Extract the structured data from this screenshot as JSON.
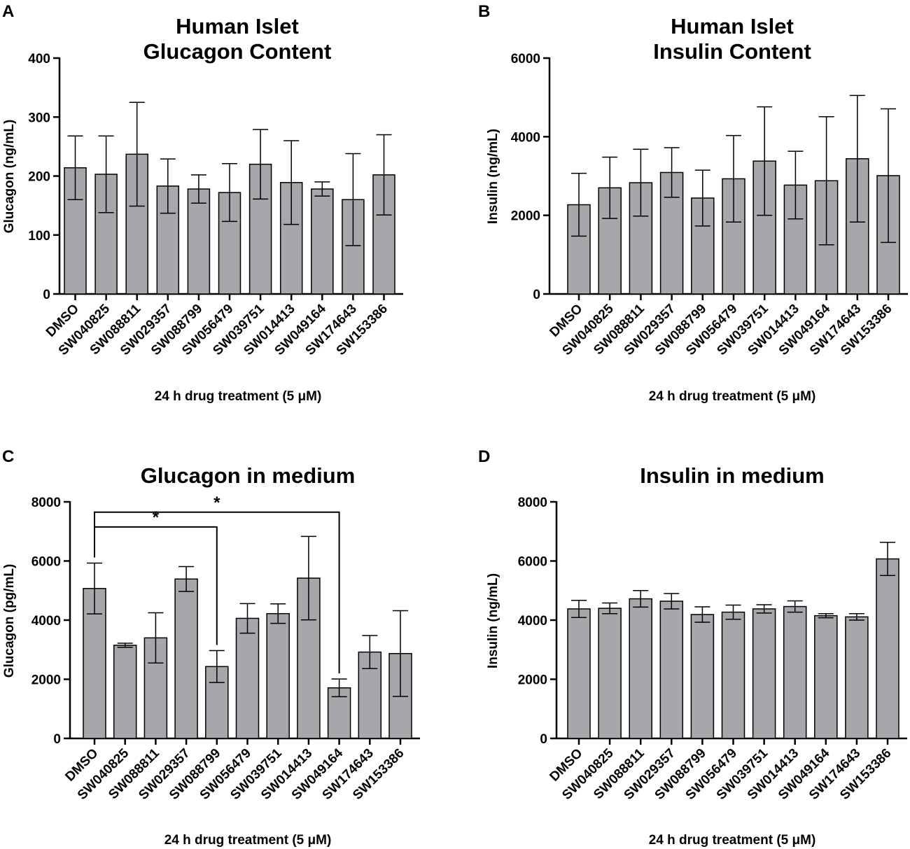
{
  "colors": {
    "bar_fill": "#a7a7ab",
    "bar_stroke": "#000000"
  },
  "chart_data": [
    {
      "panel": "A",
      "type": "bar",
      "title": [
        "Human Islet",
        "Glucagon Content"
      ],
      "ylabel": "Glucagon (ng/mL)",
      "xlabel": "24 h drug treatment  (5 μM)",
      "ylim": [
        0,
        400
      ],
      "yticks": [
        0,
        100,
        200,
        300,
        400
      ],
      "categories": [
        "DMSO",
        "SW040825",
        "SW088811",
        "SW029357",
        "SW088799",
        "SW056479",
        "SW039751",
        "SW014413",
        "SW049164",
        "SW174643",
        "SW153386"
      ],
      "values": [
        214,
        203,
        237,
        183,
        178,
        172,
        220,
        189,
        178,
        160,
        202
      ],
      "error": [
        54,
        65,
        88,
        46,
        24,
        49,
        59,
        71,
        12,
        78,
        68
      ],
      "significance": []
    },
    {
      "panel": "B",
      "type": "bar",
      "title": [
        "Human Islet",
        "Insulin Content"
      ],
      "ylabel": "Insulin (ng/mL)",
      "xlabel": "24 h drug treatment (5 μM)",
      "ylim": [
        0,
        6000
      ],
      "yticks": [
        0,
        2000,
        4000,
        6000
      ],
      "categories": [
        "DMSO",
        "SW040825",
        "SW088811",
        "SW029357",
        "SW088799",
        "SW056479",
        "SW039751",
        "SW014413",
        "SW049164",
        "SW174643",
        "SW153386"
      ],
      "values": [
        2270,
        2700,
        2830,
        3090,
        2440,
        2930,
        3380,
        2770,
        2880,
        3440,
        3010
      ],
      "error": [
        800,
        780,
        850,
        630,
        710,
        1100,
        1380,
        860,
        1630,
        1610,
        1700
      ],
      "significance": []
    },
    {
      "panel": "C",
      "type": "bar",
      "title": [
        "Glucagon in medium"
      ],
      "ylabel": "Glucagon (pg/mL)",
      "xlabel": "24 h drug treatment (5 μM)",
      "ylim": [
        0,
        8000
      ],
      "yticks": [
        0,
        2000,
        4000,
        6000,
        8000
      ],
      "categories": [
        "DMSO",
        "SW040825",
        "SW088811",
        "SW029357",
        "SW088799",
        "SW056479",
        "SW039751",
        "SW014413",
        "SW049164",
        "SW174643",
        "SW153386"
      ],
      "values": [
        5070,
        3150,
        3400,
        5390,
        2430,
        4060,
        4220,
        5420,
        1710,
        2920,
        2870
      ],
      "error": [
        860,
        70,
        850,
        420,
        540,
        500,
        330,
        1410,
        300,
        560,
        1450
      ],
      "significance": [
        {
          "from": 0,
          "to": 4,
          "label": "*",
          "level": 7150
        },
        {
          "from": 0,
          "to": 8,
          "label": "*",
          "level": 7650
        }
      ]
    },
    {
      "panel": "D",
      "type": "bar",
      "title": [
        "Insulin in medium"
      ],
      "ylabel": "Insulin (ng/mL)",
      "xlabel": "24 h drug treatment (5 μM)",
      "ylim": [
        0,
        8000
      ],
      "yticks": [
        0,
        2000,
        4000,
        6000,
        8000
      ],
      "categories": [
        "DMSO",
        "SW040825",
        "SW088811",
        "SW029357",
        "SW088799",
        "SW056479",
        "SW039751",
        "SW014413",
        "SW049164",
        "SW174643",
        "SW153386"
      ],
      "values": [
        4380,
        4400,
        4720,
        4640,
        4190,
        4270,
        4380,
        4460,
        4150,
        4110,
        6070
      ],
      "error": [
        290,
        180,
        280,
        260,
        260,
        240,
        140,
        190,
        70,
        110,
        560
      ],
      "significance": []
    }
  ]
}
